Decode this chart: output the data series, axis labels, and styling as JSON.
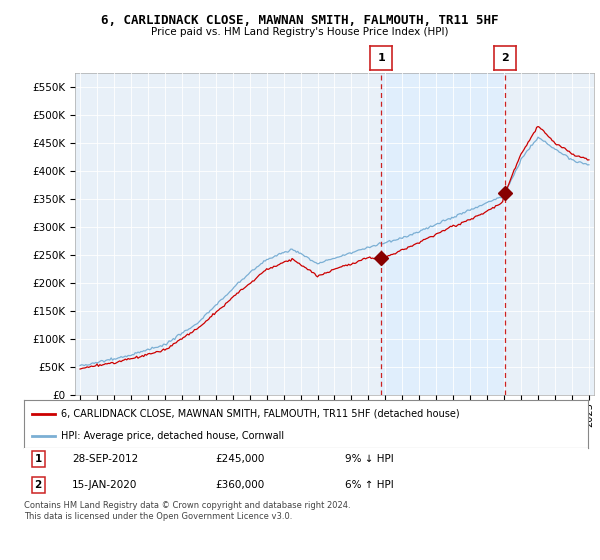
{
  "title": "6, CARLIDNACK CLOSE, MAWNAN SMITH, FALMOUTH, TR11 5HF",
  "subtitle": "Price paid vs. HM Land Registry's House Price Index (HPI)",
  "legend_line1": "6, CARLIDNACK CLOSE, MAWNAN SMITH, FALMOUTH, TR11 5HF (detached house)",
  "legend_line2": "HPI: Average price, detached house, Cornwall",
  "annotation1_date": "28-SEP-2012",
  "annotation1_price": "£245,000",
  "annotation1_hpi": "9% ↓ HPI",
  "annotation2_date": "15-JAN-2020",
  "annotation2_price": "£360,000",
  "annotation2_hpi": "6% ↑ HPI",
  "footnote": "Contains HM Land Registry data © Crown copyright and database right 2024.\nThis data is licensed under the Open Government Licence v3.0.",
  "ylim": [
    0,
    575000
  ],
  "yticks": [
    0,
    50000,
    100000,
    150000,
    200000,
    250000,
    300000,
    350000,
    400000,
    450000,
    500000,
    550000
  ],
  "ytick_labels": [
    "£0",
    "£50K",
    "£100K",
    "£150K",
    "£200K",
    "£250K",
    "£300K",
    "£350K",
    "£400K",
    "£450K",
    "£500K",
    "£550K"
  ],
  "sale1_x": 2012.75,
  "sale1_y": 245000,
  "sale2_x": 2020.04,
  "sale2_y": 360000,
  "hpi_color": "#7bafd4",
  "price_color": "#cc0000",
  "sale_marker_color": "#880000",
  "vline_color": "#cc2222",
  "shade_color": "#ddeeff",
  "background_color": "#e8f0f8",
  "plot_bg": "#ffffff",
  "grid_color": "#cccccc",
  "xlim_left": 1994.7,
  "xlim_right": 2025.3
}
